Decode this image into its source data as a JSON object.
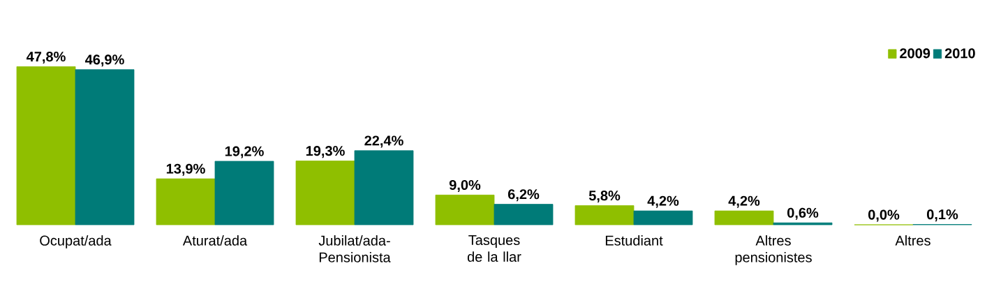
{
  "chart_data": {
    "type": "bar",
    "categories": [
      "Ocupat/ada",
      "Aturat/ada",
      "Jubilat/ada-Pensionista",
      "Tasques de la llar",
      "Estudiant",
      "Altres pensionistes",
      "Altres"
    ],
    "series": [
      {
        "name": "2009",
        "color": "#8fbf00",
        "values": [
          47.8,
          13.9,
          19.3,
          9.0,
          5.8,
          4.2,
          0.0
        ],
        "value_labels": [
          "47,8%",
          "13,9%",
          "19,3%",
          "9,0%",
          "5,8%",
          "4,2%",
          "0,0%"
        ]
      },
      {
        "name": "2010",
        "color": "#007b78",
        "values": [
          46.9,
          19.2,
          22.4,
          6.2,
          4.2,
          0.6,
          0.1
        ],
        "value_labels": [
          "46,9%",
          "19,2%",
          "22,4%",
          "6,2%",
          "4,2%",
          "0,6%",
          "0,1%"
        ]
      }
    ],
    "legend": "top right"
  }
}
